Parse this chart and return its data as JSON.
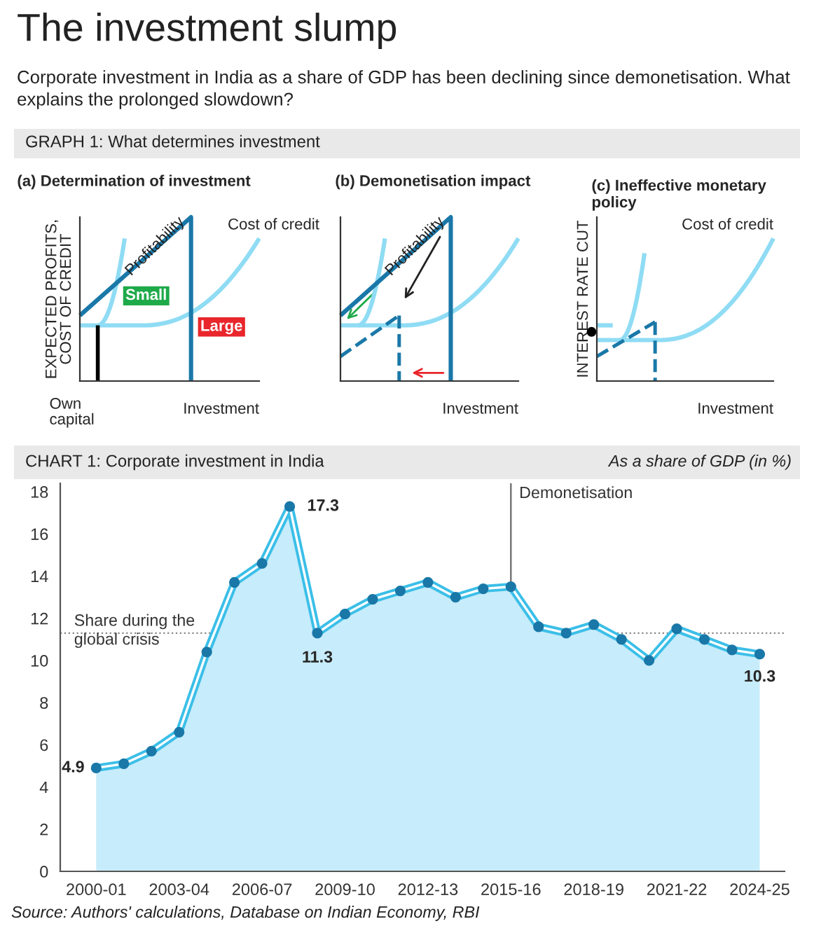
{
  "chart_data": [
    {
      "type": "other",
      "title": "The investment slump",
      "subtitle": "Corporate investment in India as a share of GDP has been declining since demonetisation. What explains the prolonged slowdown?",
      "annotations": [
        "GRAPH 1: What determines investment"
      ]
    },
    {
      "type": "other",
      "title": "(a) Determination of investment",
      "xlabel": "Investment",
      "ylabel": "EXPECTED PROFITS,\nCOST OF CREDIT",
      "annotations": [
        "Profitability",
        "Cost of credit",
        "Small",
        "Large",
        "Own\ncapital"
      ]
    },
    {
      "type": "other",
      "title": "(b) Demonetisation impact",
      "xlabel": "Investment",
      "annotations": [
        "Profitability"
      ]
    },
    {
      "type": "other",
      "title": "(c) Ineffective monetary\npolicy",
      "xlabel": "Investment",
      "ylabel": "INTEREST RATE CUT",
      "annotations": [
        "Cost of credit"
      ]
    },
    {
      "type": "area",
      "title": "CHART 1: Corporate investment in India",
      "subtitle": "As a share of GDP (in %)",
      "categories": [
        "2000-01",
        null,
        null,
        "2003-04",
        null,
        null,
        "2006-07",
        null,
        null,
        "2009-10",
        null,
        null,
        "2012-13",
        null,
        null,
        "2015-16",
        null,
        null,
        "2018-19",
        null,
        null,
        "2021-22",
        null,
        null,
        "2024-25"
      ],
      "series": [
        {
          "color": "#3bbfe8",
          "values": [
            4.9,
            5.1,
            5.7,
            6.6,
            10.4,
            13.7,
            14.6,
            17.3,
            11.3,
            12.2,
            12.9,
            13.3,
            13.7,
            13.0,
            13.4,
            13.5,
            11.6,
            11.3,
            11.7,
            11.0,
            10.0,
            11.5,
            11.0,
            10.5,
            10.3
          ],
          "value_labels": [
            "4.9",
            null,
            null,
            null,
            null,
            null,
            null,
            "17.3",
            "11.3",
            null,
            null,
            null,
            null,
            null,
            null,
            null,
            null,
            null,
            null,
            null,
            null,
            null,
            null,
            null,
            "10.3"
          ]
        }
      ],
      "ylim": [
        0,
        18.4
      ],
      "yticks": [
        0,
        2,
        4,
        6,
        8,
        10,
        12,
        14,
        16,
        18
      ],
      "marker": "circle",
      "grid": false,
      "legend": false,
      "ref_lines": [
        {
          "axis": "y",
          "value": 11.3,
          "label": "Share during the global crisis",
          "color": "#888888",
          "line_style": "dotted"
        },
        {
          "axis": "x",
          "value": "2015-16",
          "label": "Demonetisation",
          "color": "#777777",
          "line_style": "solid"
        }
      ],
      "annotations": [
        "Source: Authors' calculations, Database on Indian Economy, RBI"
      ]
    }
  ]
}
